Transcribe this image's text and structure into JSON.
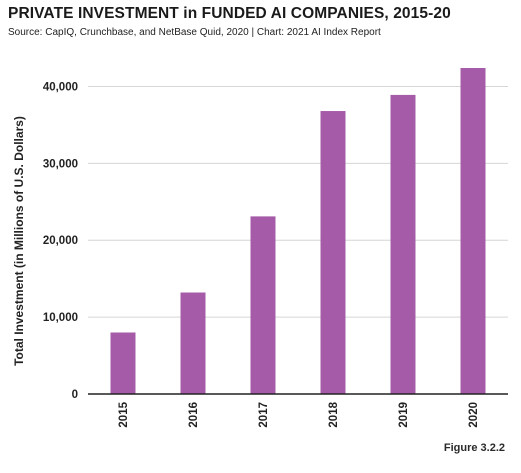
{
  "header": {
    "title": "PRIVATE INVESTMENT in FUNDED AI COMPANIES, 2015-20",
    "subtitle": "Source: CapIQ, Crunchbase, and NetBase Quid, 2020 | Chart: 2021 AI Index Report"
  },
  "footer": {
    "figure_label": "Figure 3.2.2"
  },
  "colors": {
    "bar": "#a65ba8",
    "grid": "#d6d6d6",
    "axis": "#222222"
  },
  "chart_data": {
    "type": "bar",
    "title": "PRIVATE INVESTMENT in FUNDED AI COMPANIES, 2015-20",
    "xlabel": "",
    "ylabel": "Total Investment (in Millions of U.S. Dollars)",
    "categories": [
      "2015",
      "2016",
      "2017",
      "2018",
      "2019",
      "2020"
    ],
    "values": [
      8000,
      13200,
      23100,
      36800,
      38900,
      42400
    ],
    "ylim": [
      0,
      45000
    ],
    "yticks": [
      0,
      10000,
      20000,
      30000,
      40000
    ],
    "ytick_labels": [
      "0",
      "10,000",
      "20,000",
      "30,000",
      "40,000"
    ],
    "grid": true,
    "legend": "none"
  }
}
